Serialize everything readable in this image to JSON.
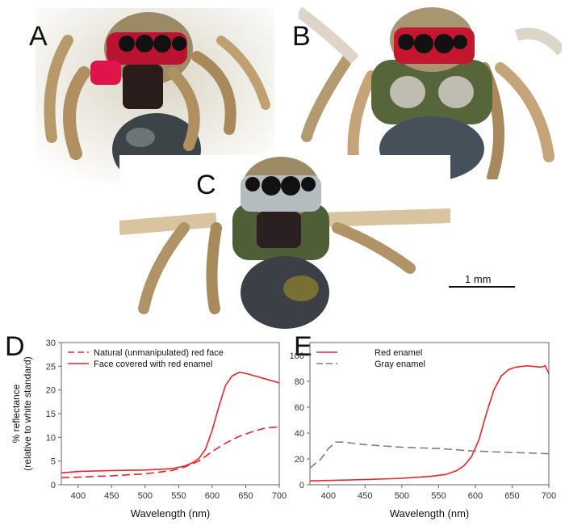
{
  "panels": {
    "A": {
      "letter": "A"
    },
    "B": {
      "letter": "B"
    },
    "C": {
      "letter": "C"
    },
    "D": {
      "letter": "D"
    },
    "E": {
      "letter": "E"
    }
  },
  "scale_bar": {
    "label": "1 mm"
  },
  "colors": {
    "red": "#e8252b",
    "gray": "#7f7f7f",
    "axis": "#666666"
  },
  "chart_data": [
    {
      "panel": "D",
      "type": "line",
      "xlabel": "Wavelength (nm)",
      "ylabel_line1": "% reflectance",
      "ylabel_line2": "(relative to white standard)",
      "xlim": [
        375,
        700
      ],
      "ylim": [
        0,
        30
      ],
      "xticks": [
        400,
        450,
        500,
        550,
        600,
        650,
        700
      ],
      "yticks": [
        0,
        5,
        10,
        15,
        20,
        25,
        30
      ],
      "legend_position": "top-left",
      "series": [
        {
          "name": "Natural (unmanipulated) red face",
          "style": "dashed",
          "color": "#e8252b",
          "x": [
            375,
            400,
            450,
            500,
            540,
            560,
            580,
            600,
            620,
            640,
            660,
            680,
            700
          ],
          "y": [
            1.5,
            1.6,
            1.9,
            2.3,
            3.0,
            3.8,
            5.0,
            7.0,
            8.8,
            10.2,
            11.2,
            12.0,
            12.2
          ]
        },
        {
          "name": "Face covered with red enamel",
          "style": "solid",
          "color": "#e8252b",
          "x": [
            375,
            400,
            450,
            500,
            540,
            560,
            570,
            580,
            590,
            600,
            610,
            620,
            630,
            640,
            650,
            660,
            680,
            700
          ],
          "y": [
            2.5,
            2.8,
            3.0,
            3.1,
            3.4,
            4.0,
            4.6,
            5.5,
            7.5,
            11.5,
            16.5,
            21.0,
            23.0,
            23.7,
            23.5,
            23.1,
            22.3,
            21.5
          ]
        }
      ]
    },
    {
      "panel": "E",
      "type": "line",
      "xlabel": "Wavelength (nm)",
      "xlim": [
        375,
        700
      ],
      "ylim": [
        0,
        110
      ],
      "xticks": [
        400,
        450,
        500,
        550,
        600,
        650,
        700
      ],
      "yticks": [
        0,
        20,
        40,
        60,
        80,
        100
      ],
      "legend_position": "top-left",
      "series": [
        {
          "name": "Red enamel",
          "style": "solid",
          "color": "#e8252b",
          "x": [
            375,
            400,
            450,
            500,
            540,
            560,
            575,
            585,
            595,
            605,
            615,
            625,
            635,
            645,
            655,
            670,
            690,
            695,
            700
          ],
          "y": [
            3,
            3.3,
            4,
            5,
            6.5,
            8,
            11,
            15,
            22,
            35,
            55,
            73,
            84,
            89,
            91,
            92,
            91,
            92,
            86
          ]
        },
        {
          "name": "Gray enamel",
          "style": "dashed",
          "color": "#7f7f7f",
          "x": [
            375,
            390,
            400,
            410,
            420,
            450,
            500,
            550,
            600,
            650,
            700
          ],
          "y": [
            13,
            20,
            28,
            33,
            33,
            31,
            29,
            28,
            26,
            25,
            24
          ]
        }
      ]
    }
  ]
}
